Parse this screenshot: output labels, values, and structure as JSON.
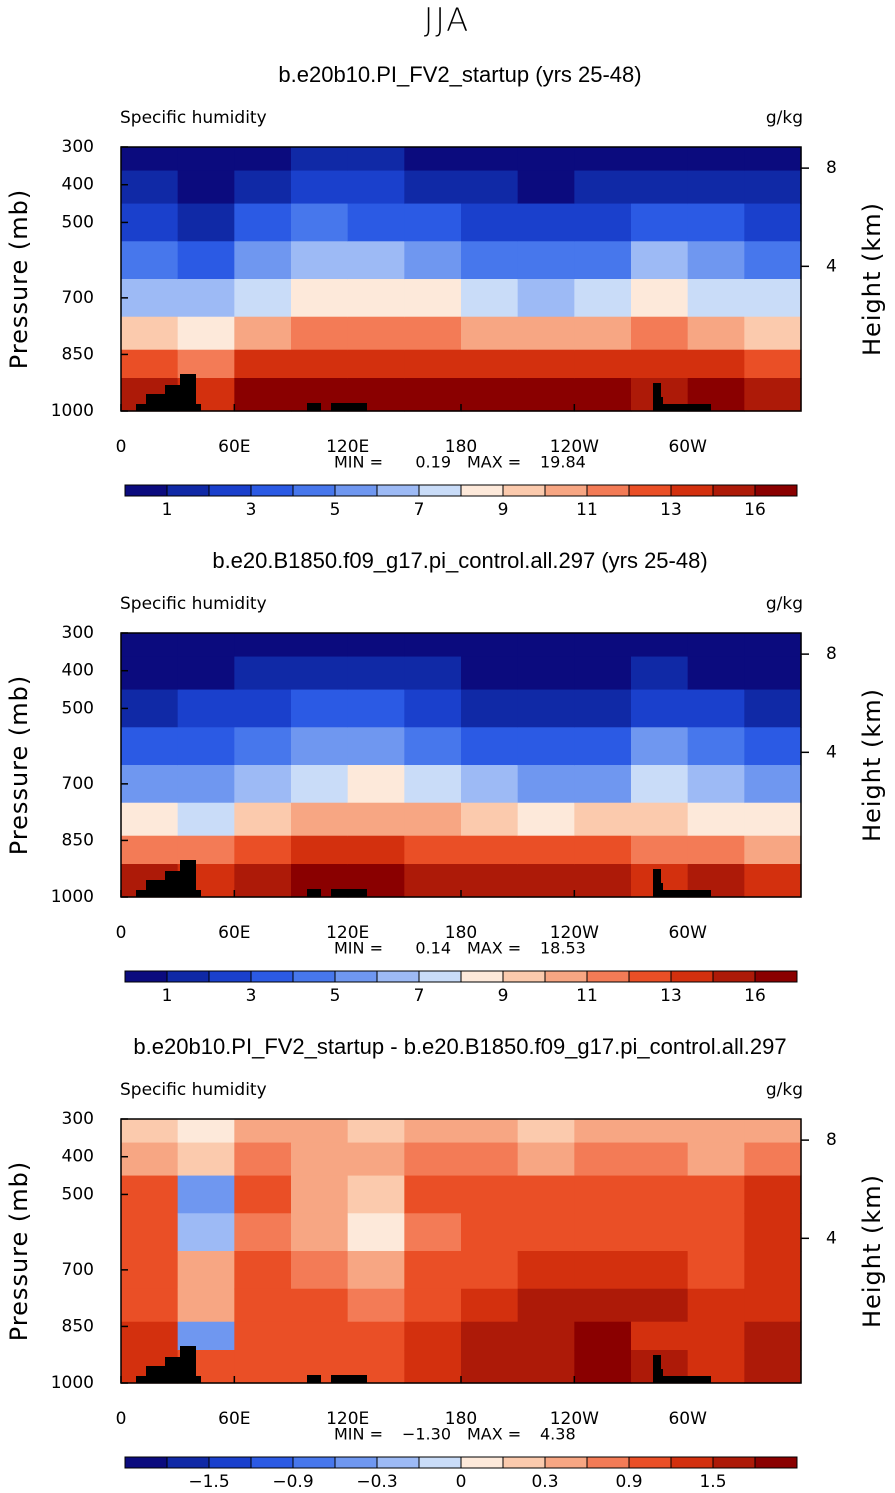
{
  "figure_title": "JJA",
  "chart_data": [
    {
      "type": "contour",
      "title": "b.e20b10.PI_FV2_startup (yrs 25-48)",
      "left_label": "Specific humidity",
      "right_label": "g/kg",
      "ylabel": "Pressure (mb)",
      "y2label": "Height (km)",
      "x": [
        15,
        45,
        75,
        105,
        135,
        165,
        195,
        225,
        255,
        285,
        315,
        345
      ],
      "y": [
        325,
        400,
        500,
        600,
        700,
        800,
        875,
        950
      ],
      "z": [
        [
          0.5,
          1,
          2,
          4,
          6,
          9,
          12,
          15
        ],
        [
          0.5,
          0.9,
          1.8,
          3.5,
          6,
          8,
          11,
          14
        ],
        [
          0.7,
          1.5,
          3,
          5,
          7.5,
          10,
          13,
          16
        ],
        [
          1,
          2.2,
          4,
          6,
          8.5,
          11,
          14,
          17
        ],
        [
          1,
          2,
          3.8,
          6,
          8.5,
          11,
          14,
          17
        ],
        [
          0.8,
          1.6,
          3.2,
          5.5,
          8,
          11,
          14,
          17
        ],
        [
          0.6,
          1.2,
          2.5,
          4.5,
          7,
          10.5,
          14,
          17
        ],
        [
          0.4,
          0.9,
          2,
          4,
          6.5,
          10,
          14,
          17
        ],
        [
          0.5,
          1,
          2.2,
          4.5,
          7,
          10.5,
          14,
          17
        ],
        [
          0.8,
          1.8,
          3.5,
          6,
          8.5,
          11,
          13,
          15
        ],
        [
          0.6,
          1.4,
          3,
          5,
          7.5,
          10,
          13,
          16
        ],
        [
          0.6,
          1.3,
          2.8,
          4.8,
          7,
          9.5,
          12,
          15.5
        ]
      ],
      "xlim": [
        0,
        360
      ],
      "ylim": [
        300,
        1000
      ],
      "xticks": [
        0,
        {
          "value": 60,
          "label": "60E"
        },
        {
          "value": 120,
          "label": "120E"
        },
        180,
        {
          "value": 240,
          "label": "120W"
        },
        {
          "value": 300,
          "label": "60W"
        }
      ],
      "yticks": [
        300,
        400,
        500,
        700,
        850,
        1000
      ],
      "y2ticks": [
        8,
        4
      ],
      "min_label": "MIN =",
      "min": 0.19,
      "max_label": "MAX =",
      "max": 19.84,
      "colorbar": {
        "colors": [
          "#0b0b7e",
          "#1029a6",
          "#1a40cc",
          "#2b5ae4",
          "#4777ec",
          "#6f97f0",
          "#9dbaf5",
          "#c9dcf8",
          "#fde9da",
          "#fbcaad",
          "#f7a683",
          "#f37b56",
          "#ea4f26",
          "#d3300e",
          "#ad1a08",
          "#8a0000"
        ],
        "levels": [
          1,
          null,
          3,
          null,
          5,
          null,
          7,
          null,
          9,
          null,
          11,
          null,
          13,
          null,
          16
        ]
      }
    },
    {
      "type": "contour",
      "title": "b.e20.B1850.f09_g17.pi_control.all.297 (yrs 25-48)",
      "left_label": "Specific humidity",
      "right_label": "g/kg",
      "ylabel": "Pressure (mb)",
      "y2label": "Height (km)",
      "x": [
        15,
        45,
        75,
        105,
        135,
        165,
        195,
        225,
        255,
        285,
        315,
        345
      ],
      "y": [
        325,
        400,
        500,
        600,
        700,
        800,
        875,
        950
      ],
      "z": [
        [
          0.4,
          0.9,
          1.8,
          3.6,
          5.8,
          8.5,
          11.5,
          14.5
        ],
        [
          0.4,
          0.8,
          2.0,
          3.6,
          5.6,
          7.6,
          11.3,
          13.4
        ],
        [
          0.5,
          1.2,
          2.4,
          4.4,
          6.7,
          9.2,
          12.2,
          15.3
        ],
        [
          0.8,
          1.8,
          3.5,
          5.6,
          7.8,
          10.2,
          13.3,
          16.3
        ],
        [
          0.8,
          1.8,
          3.6,
          5.8,
          8.1,
          10.4,
          13.2,
          16.2
        ],
        [
          0.5,
          1.1,
          2.4,
          4.8,
          7.1,
          10.1,
          12.9,
          15.8
        ],
        [
          0.3,
          0.6,
          1.6,
          3.6,
          6.0,
          9.3,
          12.6,
          15.5
        ],
        [
          0.2,
          0.5,
          1.2,
          3.1,
          5.4,
          8.6,
          12.4,
          15.4
        ],
        [
          0.2,
          0.5,
          1.3,
          3.5,
          5.8,
          9.0,
          12.3,
          15.3
        ],
        [
          0.5,
          1.1,
          2.6,
          5.1,
          7.4,
          9.6,
          11.8,
          13.6
        ],
        [
          0.3,
          0.9,
          2.2,
          4.1,
          6.5,
          8.9,
          11.8,
          14.8
        ],
        [
          0.3,
          0.6,
          1.7,
          3.6,
          5.8,
          8.2,
          10.6,
          13.9
        ]
      ],
      "xlim": [
        0,
        360
      ],
      "ylim": [
        300,
        1000
      ],
      "xticks": [
        0,
        {
          "value": 60,
          "label": "60E"
        },
        {
          "value": 120,
          "label": "120E"
        },
        180,
        {
          "value": 240,
          "label": "120W"
        },
        {
          "value": 300,
          "label": "60W"
        }
      ],
      "yticks": [
        300,
        400,
        500,
        700,
        850,
        1000
      ],
      "y2ticks": [
        8,
        4
      ],
      "min_label": "MIN =",
      "min": 0.14,
      "max_label": "MAX =",
      "max": 18.53,
      "colorbar": {
        "colors": [
          "#0b0b7e",
          "#1029a6",
          "#1a40cc",
          "#2b5ae4",
          "#4777ec",
          "#6f97f0",
          "#9dbaf5",
          "#c9dcf8",
          "#fde9da",
          "#fbcaad",
          "#f7a683",
          "#f37b56",
          "#ea4f26",
          "#d3300e",
          "#ad1a08",
          "#8a0000"
        ],
        "levels": [
          1,
          null,
          3,
          null,
          5,
          null,
          7,
          null,
          9,
          null,
          11,
          null,
          13,
          null,
          16
        ]
      }
    },
    {
      "type": "contour",
      "title": "b.e20b10.PI_FV2_startup - b.e20.B1850.f09_g17.pi_control.all.297",
      "left_label": "Specific humidity",
      "right_label": "g/kg",
      "ylabel": "Pressure (mb)",
      "y2label": "Height (km)",
      "x": [
        15,
        45,
        75,
        105,
        135,
        165,
        195,
        225,
        255,
        285,
        315,
        345
      ],
      "y": [
        325,
        400,
        500,
        600,
        700,
        800,
        875,
        950
      ],
      "z": [
        [
          0.2,
          0.6,
          0.9,
          0.9,
          1.0,
          1.0,
          1.2,
          1.4
        ],
        [
          0.1,
          0.2,
          -0.4,
          -0.2,
          0.3,
          0.6,
          -0.5,
          1.0
        ],
        [
          0.3,
          0.7,
          0.9,
          0.8,
          1.0,
          1.0,
          1.1,
          1.0
        ],
        [
          0.3,
          0.5,
          0.6,
          0.5,
          0.8,
          1.0,
          1.0,
          1.0
        ],
        [
          0.2,
          0.3,
          0.2,
          0.1,
          0.5,
          0.8,
          1.0,
          1.0
        ],
        [
          0.4,
          0.7,
          0.9,
          0.8,
          1.0,
          1.0,
          1.2,
          1.3
        ],
        [
          0.4,
          0.8,
          1.0,
          1.0,
          1.1,
          1.3,
          1.5,
          1.6
        ],
        [
          0.2,
          0.5,
          0.9,
          1.0,
          1.2,
          1.5,
          1.7,
          1.7
        ],
        [
          0.3,
          0.7,
          1.0,
          1.1,
          1.3,
          1.6,
          1.8,
          1.8
        ],
        [
          0.4,
          0.8,
          1.0,
          1.0,
          1.2,
          1.5,
          1.3,
          1.5
        ],
        [
          0.3,
          0.6,
          0.9,
          1.0,
          1.1,
          1.2,
          1.2,
          1.3
        ],
        [
          0.4,
          0.8,
          1.2,
          1.3,
          1.3,
          1.4,
          1.5,
          1.6
        ]
      ],
      "xlim": [
        0,
        360
      ],
      "ylim": [
        300,
        1000
      ],
      "xticks": [
        0,
        {
          "value": 60,
          "label": "60E"
        },
        {
          "value": 120,
          "label": "120E"
        },
        180,
        {
          "value": 240,
          "label": "120W"
        },
        {
          "value": 300,
          "label": "60W"
        }
      ],
      "yticks": [
        300,
        400,
        500,
        700,
        850,
        1000
      ],
      "y2ticks": [
        8,
        4
      ],
      "min_label": "MIN =",
      "min": {
        "value": -1.3,
        "label": "−1.30"
      },
      "max_label": "MAX =",
      "max": 4.38,
      "colorbar": {
        "colors": [
          "#0b0b7e",
          "#1029a6",
          "#1a40cc",
          "#2b5ae4",
          "#4777ec",
          "#6f97f0",
          "#9dbaf5",
          "#c9dcf8",
          "#fde9da",
          "#fbcaad",
          "#f7a683",
          "#f37b56",
          "#ea4f26",
          "#d3300e",
          "#ad1a08",
          "#8a0000"
        ],
        "levels": [
          null,
          {
            "value": -1.5,
            "label": "−1.5"
          },
          null,
          {
            "value": -0.9,
            "label": "−0.9"
          },
          null,
          {
            "value": -0.3,
            "label": "−0.3"
          },
          null,
          0,
          null,
          0.3,
          null,
          0.9,
          null,
          1.5,
          null
        ]
      }
    }
  ]
}
